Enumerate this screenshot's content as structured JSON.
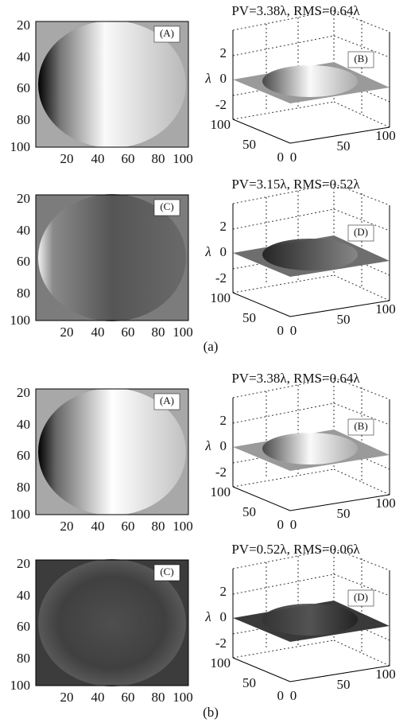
{
  "groups": [
    {
      "label": "(a)",
      "rows": [
        {
          "image": {
            "label": "(A)",
            "yticks": [
              20,
              40,
              60,
              80,
              100
            ],
            "xticks": [
              20,
              40,
              60,
              80,
              100
            ]
          },
          "surface": {
            "title": "PV=3.38λ, RMS=0.64λ",
            "label": "(B)",
            "zlabel": "λ",
            "zticks": [
              2,
              0,
              -2
            ],
            "yticks": [
              100,
              50,
              0
            ],
            "xticks": [
              0,
              50,
              100
            ]
          }
        },
        {
          "image": {
            "label": "(C)",
            "yticks": [
              20,
              40,
              60,
              80,
              100
            ],
            "xticks": [
              20,
              40,
              60,
              80,
              100
            ]
          },
          "surface": {
            "title": "PV=3.15λ, RMS=0.52λ",
            "label": "(D)",
            "zlabel": "λ",
            "zticks": [
              2,
              0,
              -2
            ],
            "yticks": [
              100,
              50,
              0
            ],
            "xticks": [
              0,
              50,
              100
            ]
          }
        }
      ]
    },
    {
      "label": "(b)",
      "rows": [
        {
          "image": {
            "label": "(A)",
            "yticks": [
              20,
              40,
              60,
              80,
              100
            ],
            "xticks": [
              20,
              40,
              60,
              80,
              100
            ]
          },
          "surface": {
            "title": "PV=3.38λ, RMS=0.64λ",
            "label": "(B)",
            "zlabel": "λ",
            "zticks": [
              2,
              0,
              -2
            ],
            "yticks": [
              100,
              50,
              0
            ],
            "xticks": [
              0,
              50,
              100
            ]
          }
        },
        {
          "image": {
            "label": "(C)",
            "yticks": [
              20,
              40,
              60,
              80,
              100
            ],
            "xticks": [
              20,
              40,
              60,
              80,
              100
            ]
          },
          "surface": {
            "title": "PV=0.52λ, RMS=0.06λ",
            "label": "(D)",
            "zlabel": "λ",
            "zticks": [
              2,
              0,
              -2
            ],
            "yticks": [
              100,
              50,
              0
            ],
            "xticks": [
              0,
              50,
              100
            ]
          }
        }
      ]
    }
  ]
}
